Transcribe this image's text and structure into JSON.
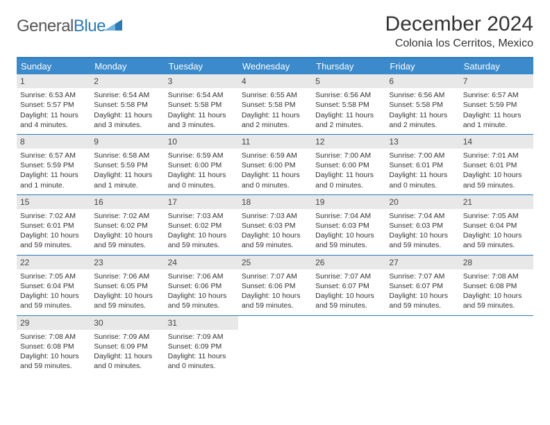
{
  "logo": {
    "text_general": "General",
    "text_blue": "Blue"
  },
  "title": "December 2024",
  "location": "Colonia los Cerritos, Mexico",
  "colors": {
    "header_bg": "#3b8acb",
    "border": "#2a7ab8",
    "daynum_bg": "#e8e8e8"
  },
  "day_names": [
    "Sunday",
    "Monday",
    "Tuesday",
    "Wednesday",
    "Thursday",
    "Friday",
    "Saturday"
  ],
  "days": [
    {
      "n": "1",
      "sr": "Sunrise: 6:53 AM",
      "ss": "Sunset: 5:57 PM",
      "dl": "Daylight: 11 hours and 4 minutes."
    },
    {
      "n": "2",
      "sr": "Sunrise: 6:54 AM",
      "ss": "Sunset: 5:58 PM",
      "dl": "Daylight: 11 hours and 3 minutes."
    },
    {
      "n": "3",
      "sr": "Sunrise: 6:54 AM",
      "ss": "Sunset: 5:58 PM",
      "dl": "Daylight: 11 hours and 3 minutes."
    },
    {
      "n": "4",
      "sr": "Sunrise: 6:55 AM",
      "ss": "Sunset: 5:58 PM",
      "dl": "Daylight: 11 hours and 2 minutes."
    },
    {
      "n": "5",
      "sr": "Sunrise: 6:56 AM",
      "ss": "Sunset: 5:58 PM",
      "dl": "Daylight: 11 hours and 2 minutes."
    },
    {
      "n": "6",
      "sr": "Sunrise: 6:56 AM",
      "ss": "Sunset: 5:58 PM",
      "dl": "Daylight: 11 hours and 2 minutes."
    },
    {
      "n": "7",
      "sr": "Sunrise: 6:57 AM",
      "ss": "Sunset: 5:59 PM",
      "dl": "Daylight: 11 hours and 1 minute."
    },
    {
      "n": "8",
      "sr": "Sunrise: 6:57 AM",
      "ss": "Sunset: 5:59 PM",
      "dl": "Daylight: 11 hours and 1 minute."
    },
    {
      "n": "9",
      "sr": "Sunrise: 6:58 AM",
      "ss": "Sunset: 5:59 PM",
      "dl": "Daylight: 11 hours and 1 minute."
    },
    {
      "n": "10",
      "sr": "Sunrise: 6:59 AM",
      "ss": "Sunset: 6:00 PM",
      "dl": "Daylight: 11 hours and 0 minutes."
    },
    {
      "n": "11",
      "sr": "Sunrise: 6:59 AM",
      "ss": "Sunset: 6:00 PM",
      "dl": "Daylight: 11 hours and 0 minutes."
    },
    {
      "n": "12",
      "sr": "Sunrise: 7:00 AM",
      "ss": "Sunset: 6:00 PM",
      "dl": "Daylight: 11 hours and 0 minutes."
    },
    {
      "n": "13",
      "sr": "Sunrise: 7:00 AM",
      "ss": "Sunset: 6:01 PM",
      "dl": "Daylight: 11 hours and 0 minutes."
    },
    {
      "n": "14",
      "sr": "Sunrise: 7:01 AM",
      "ss": "Sunset: 6:01 PM",
      "dl": "Daylight: 10 hours and 59 minutes."
    },
    {
      "n": "15",
      "sr": "Sunrise: 7:02 AM",
      "ss": "Sunset: 6:01 PM",
      "dl": "Daylight: 10 hours and 59 minutes."
    },
    {
      "n": "16",
      "sr": "Sunrise: 7:02 AM",
      "ss": "Sunset: 6:02 PM",
      "dl": "Daylight: 10 hours and 59 minutes."
    },
    {
      "n": "17",
      "sr": "Sunrise: 7:03 AM",
      "ss": "Sunset: 6:02 PM",
      "dl": "Daylight: 10 hours and 59 minutes."
    },
    {
      "n": "18",
      "sr": "Sunrise: 7:03 AM",
      "ss": "Sunset: 6:03 PM",
      "dl": "Daylight: 10 hours and 59 minutes."
    },
    {
      "n": "19",
      "sr": "Sunrise: 7:04 AM",
      "ss": "Sunset: 6:03 PM",
      "dl": "Daylight: 10 hours and 59 minutes."
    },
    {
      "n": "20",
      "sr": "Sunrise: 7:04 AM",
      "ss": "Sunset: 6:03 PM",
      "dl": "Daylight: 10 hours and 59 minutes."
    },
    {
      "n": "21",
      "sr": "Sunrise: 7:05 AM",
      "ss": "Sunset: 6:04 PM",
      "dl": "Daylight: 10 hours and 59 minutes."
    },
    {
      "n": "22",
      "sr": "Sunrise: 7:05 AM",
      "ss": "Sunset: 6:04 PM",
      "dl": "Daylight: 10 hours and 59 minutes."
    },
    {
      "n": "23",
      "sr": "Sunrise: 7:06 AM",
      "ss": "Sunset: 6:05 PM",
      "dl": "Daylight: 10 hours and 59 minutes."
    },
    {
      "n": "24",
      "sr": "Sunrise: 7:06 AM",
      "ss": "Sunset: 6:06 PM",
      "dl": "Daylight: 10 hours and 59 minutes."
    },
    {
      "n": "25",
      "sr": "Sunrise: 7:07 AM",
      "ss": "Sunset: 6:06 PM",
      "dl": "Daylight: 10 hours and 59 minutes."
    },
    {
      "n": "26",
      "sr": "Sunrise: 7:07 AM",
      "ss": "Sunset: 6:07 PM",
      "dl": "Daylight: 10 hours and 59 minutes."
    },
    {
      "n": "27",
      "sr": "Sunrise: 7:07 AM",
      "ss": "Sunset: 6:07 PM",
      "dl": "Daylight: 10 hours and 59 minutes."
    },
    {
      "n": "28",
      "sr": "Sunrise: 7:08 AM",
      "ss": "Sunset: 6:08 PM",
      "dl": "Daylight: 10 hours and 59 minutes."
    },
    {
      "n": "29",
      "sr": "Sunrise: 7:08 AM",
      "ss": "Sunset: 6:08 PM",
      "dl": "Daylight: 10 hours and 59 minutes."
    },
    {
      "n": "30",
      "sr": "Sunrise: 7:09 AM",
      "ss": "Sunset: 6:09 PM",
      "dl": "Daylight: 11 hours and 0 minutes."
    },
    {
      "n": "31",
      "sr": "Sunrise: 7:09 AM",
      "ss": "Sunset: 6:09 PM",
      "dl": "Daylight: 11 hours and 0 minutes."
    }
  ]
}
